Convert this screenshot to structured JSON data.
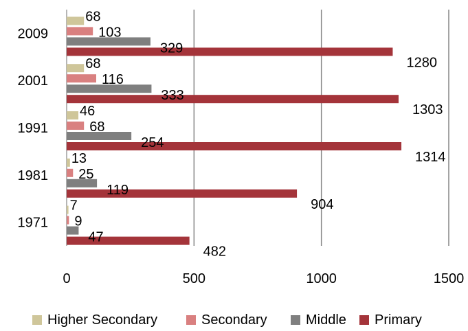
{
  "chart_data": {
    "type": "bar",
    "orientation": "horizontal",
    "categories": [
      "2009",
      "2001",
      "1991",
      "1981",
      "1971"
    ],
    "series": [
      {
        "name": "Higher Secondary",
        "color": "#cfc69a",
        "values": [
          68,
          68,
          46,
          13,
          7
        ]
      },
      {
        "name": "Secondary",
        "color": "#d98080",
        "values": [
          103,
          116,
          68,
          25,
          9
        ]
      },
      {
        "name": "Middle",
        "color": "#7f7f7f",
        "values": [
          329,
          333,
          254,
          119,
          47
        ]
      },
      {
        "name": "Primary",
        "color": "#a4343a",
        "values": [
          1280,
          1303,
          1314,
          904,
          482
        ]
      }
    ],
    "xlim": [
      0,
      1500
    ],
    "x_ticks": [
      "0",
      "500",
      "1000",
      "1500"
    ],
    "grid": "vertical",
    "legend": "bottom",
    "title": "",
    "xlabel": "",
    "ylabel": ""
  }
}
